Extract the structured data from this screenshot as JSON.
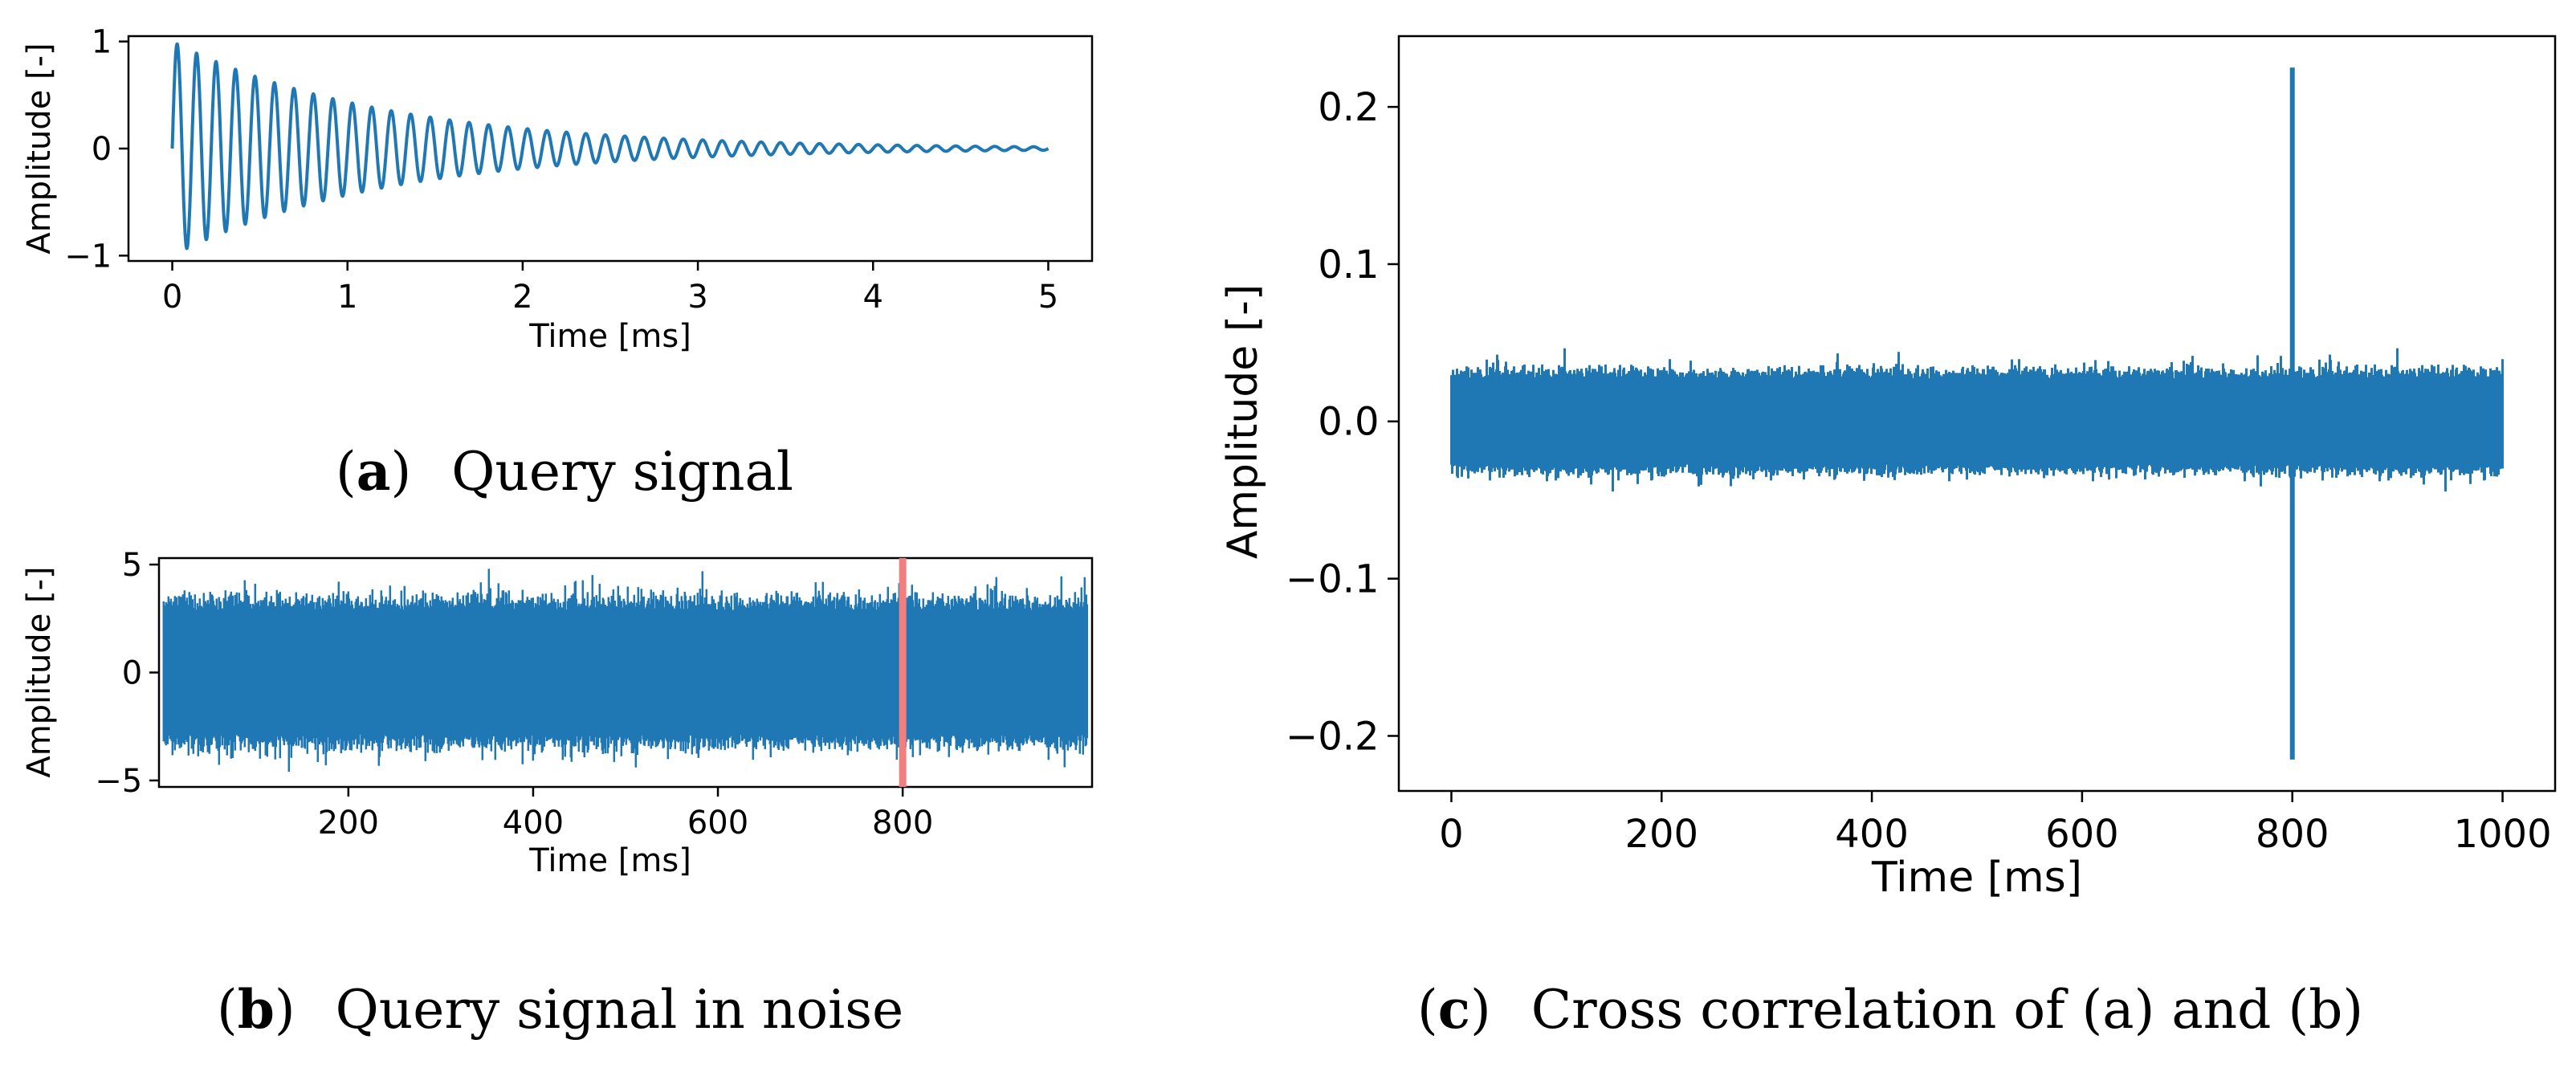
{
  "colors": {
    "series": "#1f77b4",
    "marker": "#f08080",
    "axis": "#000000"
  },
  "chart_data": [
    {
      "id": "a",
      "type": "line",
      "xlabel": "Time [ms]",
      "ylabel": "Amplitude [-]",
      "xlim": [
        -0.25,
        5.25
      ],
      "ylim": [
        -1.05,
        1.05
      ],
      "xticks": [
        0,
        1,
        2,
        3,
        4,
        5
      ],
      "xtick_labels": [
        "0",
        "1",
        "2",
        "3",
        "4",
        "5"
      ],
      "yticks": [
        -1,
        0,
        1
      ],
      "ytick_labels": [
        "−1",
        "0",
        "1"
      ],
      "signal": {
        "kind": "damped-sine",
        "duration_ms": 5,
        "frequency_khz": 9,
        "amplitude": 1,
        "decay_ms": 1.2
      },
      "caption": {
        "letter": "a",
        "open": "(",
        "close": ")",
        "text": "Query signal"
      }
    },
    {
      "id": "b",
      "type": "line",
      "xlabel": "Time [ms]",
      "ylabel": "Amplitude [-]",
      "xlim": [
        -5,
        1005
      ],
      "ylim": [
        -5.3,
        5.3
      ],
      "xticks": [
        200,
        400,
        600,
        800
      ],
      "xtick_labels": [
        "200",
        "400",
        "600",
        "800"
      ],
      "yticks": [
        -5,
        0,
        5
      ],
      "ytick_labels": [
        "−5",
        "0",
        "5"
      ],
      "signal": {
        "kind": "noise",
        "x_range": [
          0,
          1000
        ],
        "band": 3.5,
        "peak": 4.8
      },
      "marker_x": 800,
      "caption": {
        "letter": "b",
        "open": "(",
        "close": ")",
        "text": "Query signal in noise"
      }
    },
    {
      "id": "c",
      "type": "line",
      "xlabel": "Time [ms]",
      "ylabel": "Amplitude [-]",
      "xlim": [
        -50,
        1050
      ],
      "ylim": [
        -0.235,
        0.245
      ],
      "xticks": [
        0,
        200,
        400,
        600,
        800,
        1000
      ],
      "xtick_labels": [
        "0",
        "200",
        "400",
        "600",
        "800",
        "1000"
      ],
      "yticks": [
        -0.2,
        -0.1,
        0.0,
        0.1,
        0.2
      ],
      "ytick_labels": [
        "−0.2",
        "−0.1",
        "0.0",
        "0.1",
        "0.2"
      ],
      "signal": {
        "kind": "noise",
        "x_range": [
          0,
          1000
        ],
        "band": 0.033,
        "peak": 0.055
      },
      "spike": {
        "x": 800,
        "max": 0.225,
        "min": -0.215
      },
      "caption": {
        "letter": "c",
        "open": "(",
        "close": ")",
        "text": "Cross correlation of (a) and (b)"
      }
    }
  ]
}
